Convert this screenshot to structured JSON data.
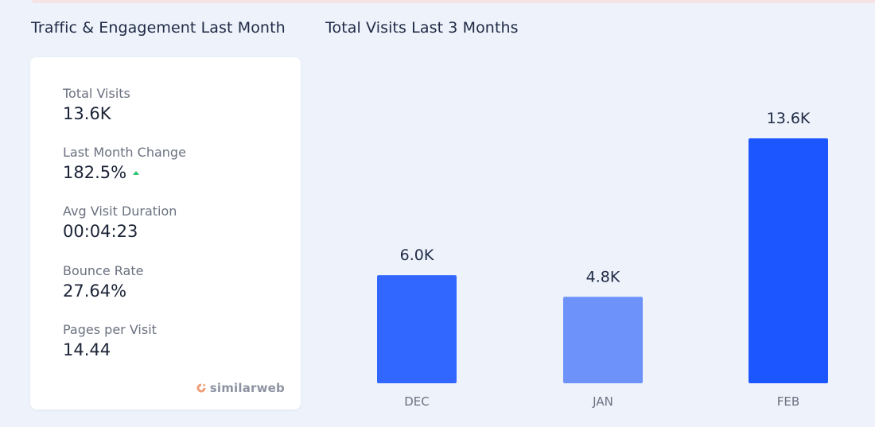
{
  "sections": {
    "left_title": "Traffic & Engagement Last Month",
    "right_title": "Total Visits Last 3 Months"
  },
  "metrics": [
    {
      "label": "Total Visits",
      "value": "13.6K"
    },
    {
      "label": "Last Month Change",
      "value": "182.5%",
      "trend": "up",
      "trend_icon": "triangle-up-icon",
      "trend_color": "#2ec46d"
    },
    {
      "label": "Avg Visit Duration",
      "value": "00:04:23"
    },
    {
      "label": "Bounce Rate",
      "value": "27.64%"
    },
    {
      "label": "Pages per Visit",
      "value": "14.44"
    }
  ],
  "brand": {
    "name": "similarweb",
    "icon": "similarweb-logo-icon",
    "color": "#8d93a1",
    "accent": "#f0a07a"
  },
  "chart_data": {
    "type": "bar",
    "title": "Total Visits Last 3 Months",
    "categories": [
      "DEC",
      "JAN",
      "FEB"
    ],
    "values": [
      6000,
      4800,
      13600
    ],
    "data_labels": [
      "6.0K",
      "4.8K",
      "13.6K"
    ],
    "ylim": [
      0,
      13600
    ],
    "grid": false,
    "legend": "none",
    "bar_colors": [
      "#3166ff",
      "#6d93fb",
      "#1c56ff"
    ]
  }
}
